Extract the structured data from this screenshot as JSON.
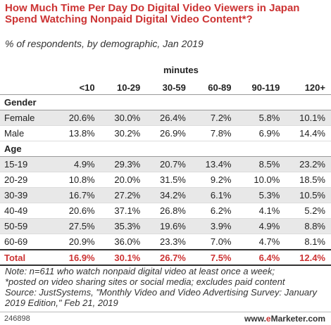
{
  "chart_data": {
    "type": "table",
    "title": "How Much Time Per Day Do Digital Video Viewers in Japan Spend Watching Nonpaid Digital Video Content*?",
    "subtitle": "% of respondents, by demographic, Jan 2019",
    "unit_label": "minutes",
    "columns": [
      "<10",
      "10-29",
      "30-59",
      "60-89",
      "90-119",
      "120+"
    ],
    "sections": [
      {
        "name": "Gender",
        "rows": [
          {
            "label": "Female",
            "values": [
              "20.6%",
              "30.0%",
              "26.4%",
              "7.2%",
              "5.8%",
              "10.1%"
            ]
          },
          {
            "label": "Male",
            "values": [
              "13.8%",
              "30.2%",
              "26.9%",
              "7.8%",
              "6.9%",
              "14.4%"
            ]
          }
        ]
      },
      {
        "name": "Age",
        "rows": [
          {
            "label": "15-19",
            "values": [
              "4.9%",
              "29.3%",
              "20.7%",
              "13.4%",
              "8.5%",
              "23.2%"
            ]
          },
          {
            "label": "20-29",
            "values": [
              "10.8%",
              "20.0%",
              "31.5%",
              "9.2%",
              "10.0%",
              "18.5%"
            ]
          },
          {
            "label": "30-39",
            "values": [
              "16.7%",
              "27.2%",
              "34.2%",
              "6.1%",
              "5.3%",
              "10.5%"
            ]
          },
          {
            "label": "40-49",
            "values": [
              "20.6%",
              "37.1%",
              "26.8%",
              "6.2%",
              "4.1%",
              "5.2%"
            ]
          },
          {
            "label": "50-59",
            "values": [
              "27.5%",
              "35.3%",
              "19.6%",
              "3.9%",
              "4.9%",
              "8.8%"
            ]
          },
          {
            "label": "60-69",
            "values": [
              "20.9%",
              "36.0%",
              "23.3%",
              "7.0%",
              "4.7%",
              "8.1%"
            ]
          }
        ]
      }
    ],
    "total": {
      "label": "Total",
      "values": [
        "16.9%",
        "30.1%",
        "26.7%",
        "7.5%",
        "6.4%",
        "12.4%"
      ]
    }
  },
  "note": {
    "line1": "Note: n=611 who watch nonpaid digital video at least once a week;",
    "line2": "*posted on video sharing sites or social media; excludes paid content",
    "line3": "Source: JustSystems, \"Monthly Video and Video Advertising Survey: January",
    "line4": "2019 Edition,\" Feb 21, 2019"
  },
  "footer": {
    "chart_id": "246898",
    "brand_prefix": "www.",
    "brand_e": "e",
    "brand_rest": "Marketer",
    "brand_suffix": ".com"
  },
  "colors": {
    "accent": "#cc3333",
    "row_shade": "#e8e8e8"
  }
}
